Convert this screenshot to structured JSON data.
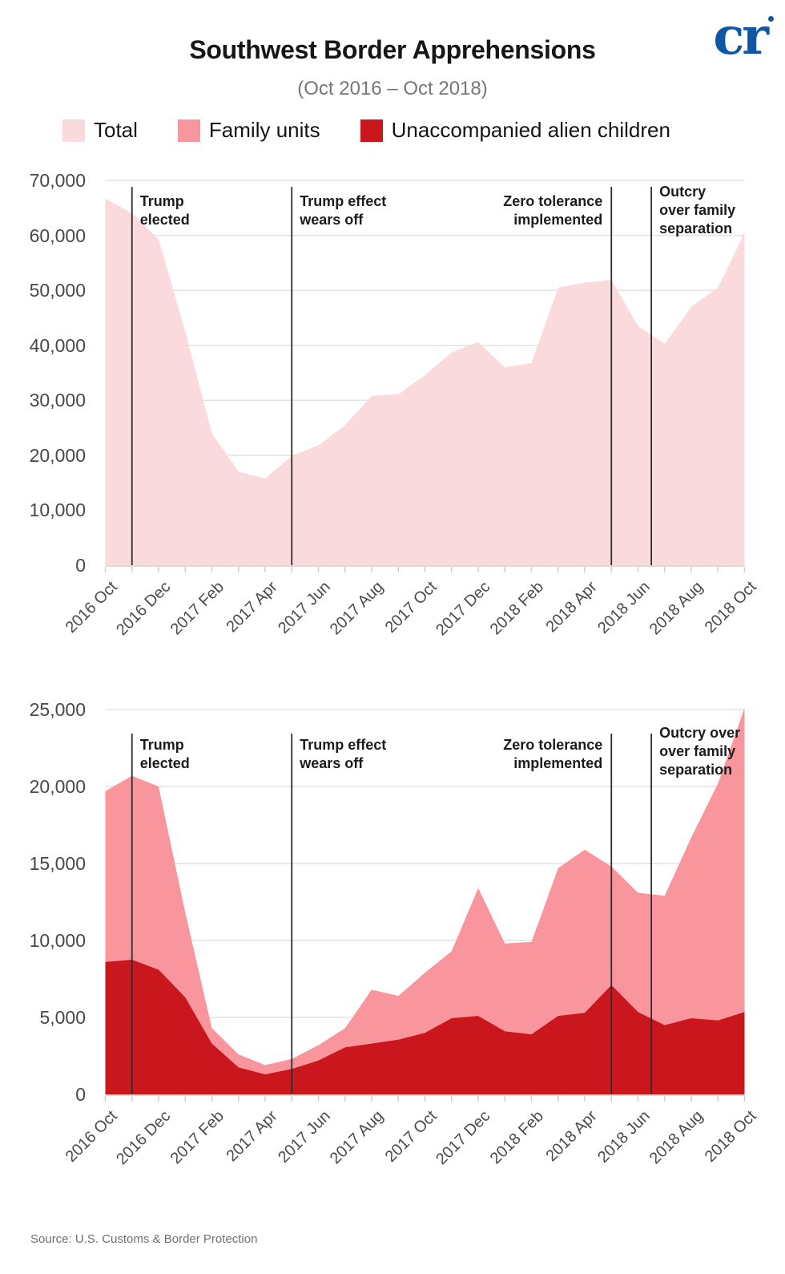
{
  "header": {
    "title": "Southwest Border Apprehensions",
    "subtitle": "(Oct 2016 – Oct 2018)",
    "logo_text": "cr"
  },
  "legend": {
    "items": [
      {
        "label": "Total",
        "color": "#fadadd"
      },
      {
        "label": "Family units",
        "color": "#f9959c"
      },
      {
        "label": "Unaccompanied alien children",
        "color": "#ca161d"
      }
    ]
  },
  "footer": {
    "source": "Source: U.S. Customs & Border Protection"
  },
  "chart_data": [
    {
      "type": "area",
      "title": "Total apprehensions",
      "x": [
        "2016 Oct",
        "2016 Nov",
        "2016 Dec",
        "2017 Jan",
        "2017 Feb",
        "2017 Mar",
        "2017 Apr",
        "2017 May",
        "2017 Jun",
        "2017 Jul",
        "2017 Aug",
        "2017 Sep",
        "2017 Oct",
        "2017 Nov",
        "2017 Dec",
        "2018 Jan",
        "2018 Feb",
        "2018 Mar",
        "2018 Apr",
        "2018 May",
        "2018 Jun",
        "2018 Jul",
        "2018 Aug",
        "2018 Sep",
        "2018 Oct"
      ],
      "xtick_labels": [
        "2016 Oct",
        "2016 Dec",
        "2017 Feb",
        "2017 Apr",
        "2017 Jun",
        "2017 Aug",
        "2017 Oct",
        "2017 Dec",
        "2018 Feb",
        "2018 Apr",
        "2018 Jun",
        "2018 Aug",
        "2018 Oct"
      ],
      "ylim": [
        0,
        70000
      ],
      "yticks": [
        0,
        10000,
        20000,
        30000,
        40000,
        50000,
        60000,
        70000
      ],
      "ytick_labels": [
        "0",
        "10,000",
        "20,000",
        "30,000",
        "40,000",
        "50,000",
        "60,000",
        "70,000"
      ],
      "grid": true,
      "series": [
        {
          "name": "Total",
          "color": "#fadadd",
          "values": [
            66700,
            64000,
            59300,
            42500,
            24000,
            17000,
            15800,
            19900,
            21800,
            25500,
            30800,
            31100,
            34600,
            38700,
            40600,
            36000,
            36800,
            50500,
            51400,
            51900,
            43500,
            40300,
            47000,
            50500,
            60500
          ]
        }
      ],
      "annotations": [
        {
          "text": "Trump\nelected",
          "month": "2016 Nov",
          "month_index": 1,
          "align": "left"
        },
        {
          "text": "Trump effect\nwears off",
          "month": "2017 May",
          "month_index": 7,
          "align": "left"
        },
        {
          "text": "Zero tolerance\nimplemented",
          "month": "2018 May",
          "month_index": 19,
          "align": "right"
        },
        {
          "text": "Outcry\nover family\nseparation",
          "month": "2018 Jun–Jul",
          "month_index": 20.5,
          "align": "left"
        }
      ]
    },
    {
      "type": "area",
      "title": "Family units and unaccompanied alien children",
      "x": [
        "2016 Oct",
        "2016 Nov",
        "2016 Dec",
        "2017 Jan",
        "2017 Feb",
        "2017 Mar",
        "2017 Apr",
        "2017 May",
        "2017 Jun",
        "2017 Jul",
        "2017 Aug",
        "2017 Sep",
        "2017 Oct",
        "2017 Nov",
        "2017 Dec",
        "2018 Jan",
        "2018 Feb",
        "2018 Mar",
        "2018 Apr",
        "2018 May",
        "2018 Jun",
        "2018 Jul",
        "2018 Aug",
        "2018 Sep",
        "2018 Oct"
      ],
      "xtick_labels": [
        "2016 Oct",
        "2016 Dec",
        "2017 Feb",
        "2017 Apr",
        "2017 Jun",
        "2017 Aug",
        "2017 Oct",
        "2017 Dec",
        "2018 Feb",
        "2018 Apr",
        "2018 Jun",
        "2018 Aug",
        "2018 Oct"
      ],
      "ylim": [
        0,
        25000
      ],
      "yticks": [
        0,
        5000,
        10000,
        15000,
        20000,
        25000
      ],
      "ytick_labels": [
        "0",
        "5,000",
        "10,000",
        "15,000",
        "20,000",
        "25,000"
      ],
      "grid": true,
      "series": [
        {
          "name": "Family units",
          "color": "#f9959c",
          "values": [
            19700,
            20700,
            20000,
            11800,
            4300,
            2600,
            1900,
            2300,
            3200,
            4300,
            6800,
            6400,
            7900,
            9300,
            13400,
            9800,
            9900,
            14700,
            15900,
            14800,
            13100,
            12900,
            16700,
            20200,
            25100
          ]
        },
        {
          "name": "Unaccompanied alien children",
          "color": "#ca161d",
          "values": [
            8600,
            8750,
            8100,
            6300,
            3300,
            1750,
            1300,
            1650,
            2200,
            3050,
            3300,
            3550,
            4000,
            4950,
            5100,
            4100,
            3900,
            5100,
            5300,
            7100,
            5350,
            4500,
            4950,
            4800,
            5350
          ]
        }
      ],
      "annotations": [
        {
          "text": "Trump\nelected",
          "month": "2016 Nov",
          "month_index": 1,
          "align": "left"
        },
        {
          "text": "Trump effect\nwears off",
          "month": "2017 May",
          "month_index": 7,
          "align": "left"
        },
        {
          "text": "Zero tolerance\nimplemented",
          "month": "2018 May",
          "month_index": 19,
          "align": "right"
        },
        {
          "text": "Outcry over\nover family\nseparation",
          "month": "2018 Jun–Jul",
          "month_index": 20.5,
          "align": "left"
        }
      ]
    }
  ]
}
